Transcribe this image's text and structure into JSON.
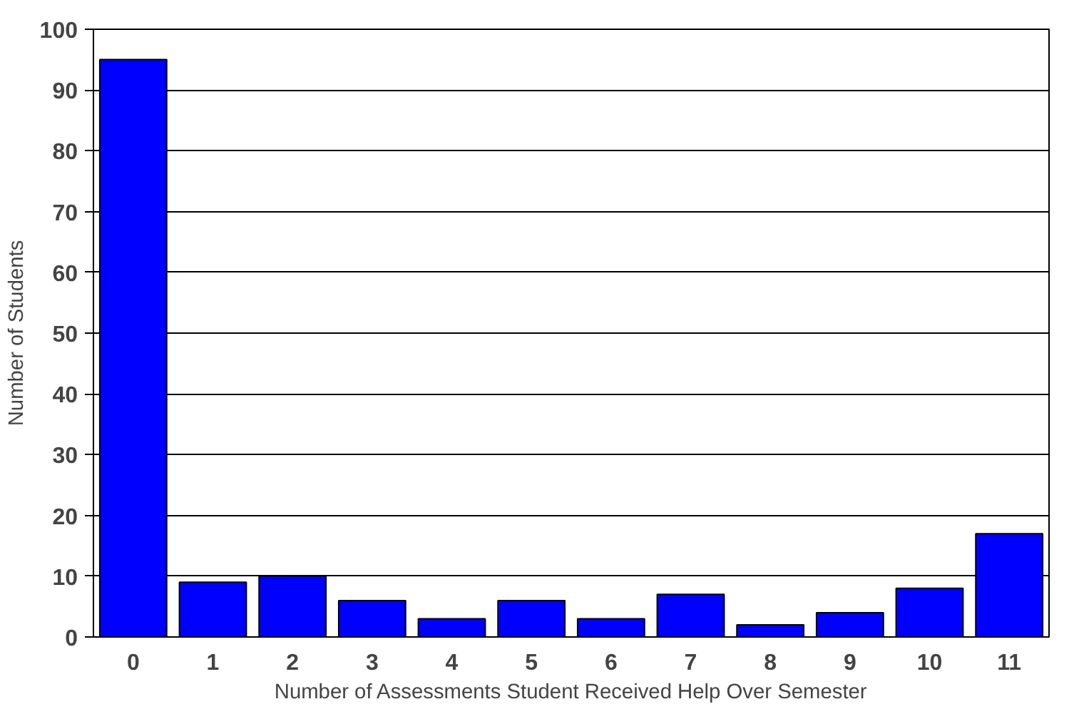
{
  "chart_data": {
    "type": "bar",
    "xlabel": "Number of Assessments Student Received Help Over Semester",
    "ylabel": "Number of Students",
    "categories": [
      "0",
      "1",
      "2",
      "3",
      "4",
      "5",
      "6",
      "7",
      "8",
      "9",
      "10",
      "11"
    ],
    "values": [
      95,
      9,
      10,
      6,
      3,
      6,
      3,
      7,
      2,
      4,
      8,
      17
    ],
    "color": "#0000ff",
    "ylim": [
      0,
      100
    ],
    "yticks": [
      0,
      10,
      20,
      30,
      40,
      50,
      60,
      70,
      80,
      90,
      100
    ],
    "grid": "y"
  }
}
